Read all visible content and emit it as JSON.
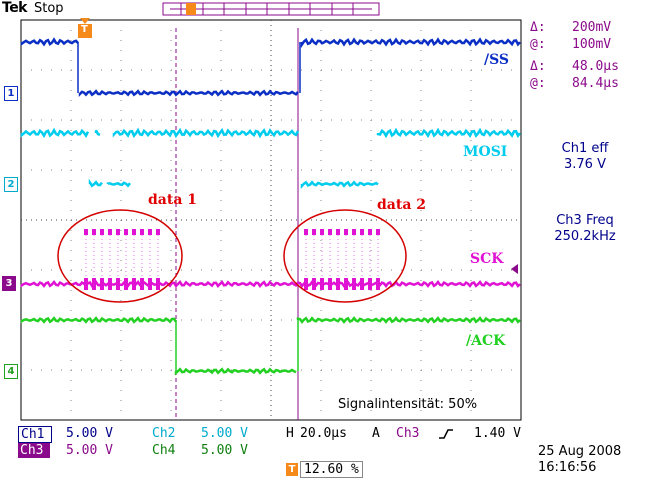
{
  "header": {
    "brand": "Tek",
    "mode": "Stop"
  },
  "cursor_readout": {
    "delta_v": "200mV",
    "at_v": "100mV",
    "delta_t": "48.0µs",
    "at_t": "84.4µs",
    "delta_sym": "Δ:",
    "at_sym": "@:"
  },
  "channel_labels": {
    "ss": "/SS",
    "mosi": "MOSI",
    "sck": "SCK",
    "ack": "/ACK"
  },
  "annotations": {
    "data1": "data 1",
    "data2": "data 2"
  },
  "measurements": {
    "ch1_title": "Ch1 eff",
    "ch1_value": "3.76 V",
    "ch3_title": "Ch3 Freq",
    "ch3_value": "250.2kHz"
  },
  "signal_intensity": "Signalintensität:   50%",
  "markers": {
    "ch1": "1",
    "ch2": "2",
    "ch3": "3",
    "ch4": "4",
    "trigger": "T"
  },
  "bottom": {
    "ch1_name": "Ch1",
    "ch1_scale": "5.00 V",
    "ch2_name": "Ch2",
    "ch2_scale": "5.00 V",
    "ch3_name": "Ch3",
    "ch3_scale": "5.00 V",
    "ch4_name": "Ch4",
    "ch4_scale": "5.00 V",
    "h_label": "H",
    "h_scale": "20.0µs",
    "a_label": "A",
    "trig_source": "Ch3",
    "trig_level": "1.40 V",
    "trig_pos": "12.60 %",
    "date": "25 Aug 2008",
    "time": "16:16:56"
  },
  "colors": {
    "ch1": "#0b2fc4",
    "ch2": "#00ccee",
    "ch3": "#e012d4",
    "ch4": "#22d022",
    "trigger": "#f58a1a",
    "annotation": "#e00000",
    "readout": "#8b0a8b"
  }
}
